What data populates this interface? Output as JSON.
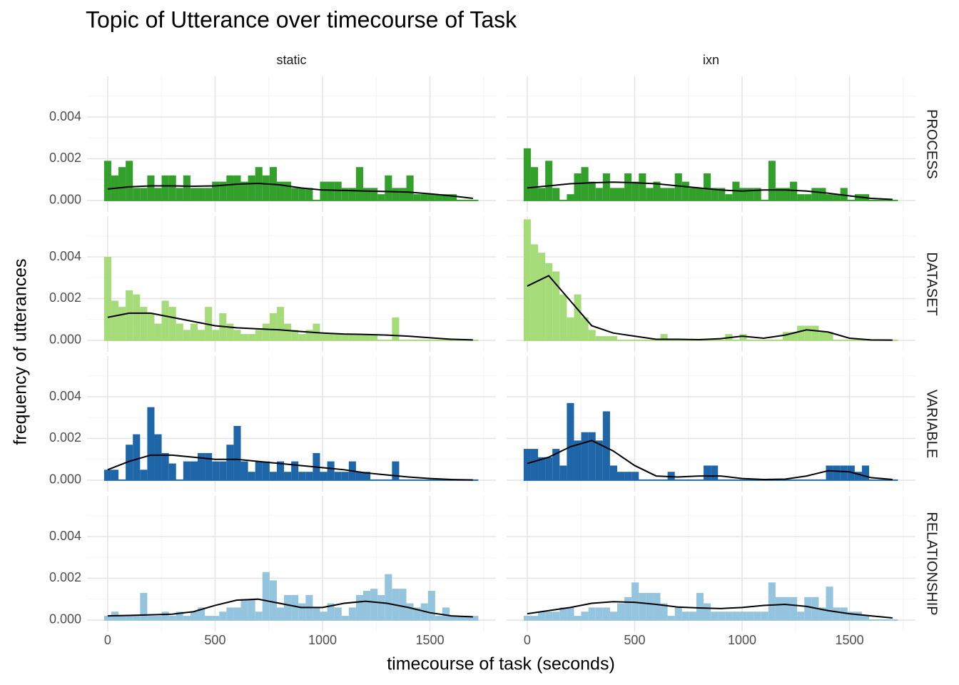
{
  "chart_data": {
    "type": "histogram",
    "title": "Topic of Utterance over timecourse of Task",
    "x_label": "timecourse of task (seconds)",
    "y_label": "frequency of utterances",
    "columns": [
      "static",
      "ixn"
    ],
    "rows": [
      {
        "name": "PROCESS",
        "color": "#33a02c"
      },
      {
        "name": "DATASET",
        "color": "#a6db7a"
      },
      {
        "name": "VARIABLE",
        "color": "#1f66a8"
      },
      {
        "name": "RELATIONSHIP",
        "color": "#94c4de"
      }
    ],
    "xlim": [
      -96,
      1807
    ],
    "ylim": [
      -0.00055,
      0.00595
    ],
    "xticks": [
      0,
      500,
      1000,
      1500
    ],
    "yticks": [
      {
        "value": 0,
        "label": "0.000"
      },
      {
        "value": 0.002,
        "label": "0.002"
      },
      {
        "value": 0.004,
        "label": "0.004"
      }
    ],
    "grid": true,
    "bins": [
      -16.75,
      16.75,
      50.25,
      83.75,
      117.25,
      150.75,
      184.25,
      217.75,
      251.25,
      284.75,
      318.25,
      351.75,
      385.25,
      418.75,
      452.25,
      485.75,
      519.25,
      552.75,
      586.25,
      619.75,
      653.25,
      686.75,
      720.25,
      753.75,
      787.25,
      820.75,
      854.25,
      887.75,
      921.25,
      954.75,
      988.25,
      1021.75,
      1055.25,
      1088.75,
      1122.25,
      1155.75,
      1189.25,
      1222.75,
      1256.25,
      1289.75,
      1323.25,
      1356.75,
      1390.25,
      1423.75,
      1457.25,
      1490.75,
      1524.25,
      1557.75,
      1591.25,
      1624.75,
      1658.25,
      1691.75,
      1725.25
    ],
    "density_x": [
      0,
      100,
      200,
      300,
      400,
      500,
      600,
      700,
      800,
      900,
      1000,
      1100,
      1200,
      1300,
      1400,
      1500,
      1600,
      1700
    ],
    "panels": [
      [
        {
          "values": [
            0.0019,
            0.0012,
            0.0016,
            0.0019,
            0.0006,
            0.0006,
            0.0012,
            0.0006,
            0.0012,
            0.0012,
            0.0006,
            0.0012,
            0.0006,
            0.0006,
            0.0006,
            0.0009,
            0.0009,
            0.0012,
            0.0012,
            0.0009,
            0.0012,
            0.0016,
            0.0012,
            0.0016,
            0.0009,
            0.0009,
            0.0006,
            0.0006,
            0.0006,
            0,
            0.0009,
            0.0009,
            0.0009,
            0.0006,
            0.0006,
            0.0016,
            0.0006,
            0.0006,
            0.0003,
            0.0012,
            0.0006,
            0.0006,
            0.0012,
            0.0003,
            0.0003,
            0.0003,
            0.0003,
            0.0003,
            0.0003,
            0,
            0,
            0
          ],
          "density": [
            0.00055,
            0.00065,
            0.0007,
            0.0007,
            0.00068,
            0.0007,
            0.00078,
            0.00082,
            0.00075,
            0.0006,
            0.0005,
            0.00048,
            0.00045,
            0.00043,
            0.0004,
            0.00032,
            0.00022,
            0.0001
          ]
        },
        {
          "values": [
            0.0025,
            0.0016,
            0.0006,
            0.0019,
            0.0006,
            0,
            0.0003,
            0.0013,
            0.0016,
            0.0009,
            0.0006,
            0.0013,
            0.0006,
            0.0006,
            0.0013,
            0.0009,
            0.0013,
            0.0006,
            0.0009,
            0.0006,
            0.0006,
            0.0013,
            0.0009,
            0.0006,
            0.0006,
            0.0013,
            0.0006,
            0.0006,
            0.0003,
            0.0009,
            0.0006,
            0.0006,
            0.0006,
            0,
            0.0019,
            0.0006,
            0.0006,
            0.0009,
            0.0003,
            0.0003,
            0.0006,
            0.0006,
            0.0003,
            0.0003,
            0.0006,
            0,
            0.0003,
            0.0003,
            0,
            0,
            0,
            0
          ],
          "density": [
            0.0006,
            0.0007,
            0.0008,
            0.00085,
            0.00088,
            0.00085,
            0.0008,
            0.0007,
            0.0006,
            0.0005,
            0.00045,
            0.0005,
            0.0005,
            0.00045,
            0.00035,
            0.00022,
            0.0001,
            5e-05
          ]
        }
      ],
      [
        {
          "values": [
            0.004,
            0.0019,
            0.0016,
            0.0024,
            0.0022,
            0.0016,
            0.0013,
            0.0008,
            0.0019,
            0.0016,
            0.0008,
            0.0005,
            0.0008,
            0.0005,
            0.0016,
            0.0005,
            0.0013,
            0.0008,
            0.0005,
            0.0003,
            0.0003,
            0.0005,
            0.0008,
            0.0013,
            0.0016,
            0.0008,
            0.0005,
            0.0003,
            0.0005,
            0.0008,
            0.0003,
            0.0003,
            0.0003,
            0.0003,
            0.0003,
            0.0003,
            0.0003,
            0.0003,
            0,
            0,
            0.0011,
            0,
            0,
            0,
            0,
            0,
            0,
            0,
            0,
            0,
            0,
            0
          ],
          "density": [
            0.0011,
            0.0013,
            0.0013,
            0.0011,
            0.0009,
            0.0007,
            0.0006,
            0.00055,
            0.0005,
            0.00042,
            0.00035,
            0.0003,
            0.00028,
            0.00025,
            0.0002,
            0.00012,
            5e-05,
            2e-05
          ]
        },
        {
          "values": [
            0.0058,
            0.0046,
            0.0042,
            0.0037,
            0.0033,
            0.0022,
            0.0011,
            0.0022,
            0.0011,
            0.0005,
            0.0002,
            0.0002,
            0.0002,
            0,
            0,
            0,
            0,
            0,
            0,
            0.0003,
            0,
            0,
            0,
            0,
            0,
            0,
            0,
            0,
            0.0003,
            0,
            0.0003,
            0,
            0,
            0,
            0,
            0,
            0.0004,
            0.0004,
            0.0007,
            0.0007,
            0.0007,
            0.0004,
            0.0004,
            0,
            0,
            0,
            0,
            0,
            0,
            0,
            0,
            0
          ],
          "density": [
            0.0026,
            0.0031,
            0.0019,
            0.0007,
            0.00035,
            0.0002,
            5e-05,
            5e-05,
            3e-05,
            8e-05,
            0.0002,
            0.0001,
            0.00025,
            0.0005,
            0.0004,
            0.0001,
            2e-05,
            1e-05
          ]
        }
      ],
      [
        {
          "values": [
            0.0005,
            0.0005,
            0,
            0.0017,
            0.0022,
            0.0005,
            0.0035,
            0.0022,
            0.0013,
            0.0008,
            0,
            0.0009,
            0.0009,
            0.0013,
            0.0013,
            0.0009,
            0.0009,
            0.0017,
            0.0026,
            0.0009,
            0.0004,
            0.0009,
            0.0009,
            0.0004,
            0.0009,
            0.0004,
            0.0009,
            0.0004,
            0.0004,
            0.0013,
            0.0004,
            0.0009,
            0.0004,
            0.0004,
            0.0009,
            0.0004,
            0.0004,
            0,
            0,
            0,
            0.0009,
            0,
            0,
            0,
            0,
            0,
            0,
            0,
            0,
            0,
            0,
            0
          ],
          "density": [
            0.0005,
            0.0009,
            0.0012,
            0.0012,
            0.0011,
            0.001,
            0.001,
            0.0009,
            0.0008,
            0.0007,
            0.0006,
            0.0005,
            0.00035,
            0.00025,
            0.00015,
            8e-05,
            3e-05,
            1e-05
          ]
        },
        {
          "values": [
            0.0015,
            0.0015,
            0.0011,
            0.0011,
            0.0015,
            0.0007,
            0.0037,
            0.0019,
            0.0023,
            0.0023,
            0.0019,
            0.0033,
            0.0007,
            0.0004,
            0.0004,
            0.0004,
            0,
            0,
            0,
            0,
            0.0004,
            0,
            0,
            0,
            0,
            0.0007,
            0.0007,
            0,
            0,
            0,
            0,
            0,
            0,
            0,
            0,
            0,
            0,
            0,
            0,
            0,
            0,
            0,
            0.0007,
            0.0007,
            0.0007,
            0.0007,
            0.0004,
            0.0007,
            0,
            0,
            0,
            0
          ],
          "density": [
            0.0008,
            0.0011,
            0.0016,
            0.0019,
            0.0014,
            0.0007,
            0.0002,
            0.00015,
            0.0002,
            0.0002,
            8e-05,
            3e-05,
            5e-05,
            0.0002,
            0.00045,
            0.0004,
            0.00012,
            3e-05
          ]
        }
      ],
      [
        {
          "values": [
            0.0002,
            0.0004,
            0.0002,
            0.0002,
            0.0002,
            0.0013,
            0.0002,
            0.0002,
            0.0004,
            0.0002,
            0.0004,
            0.0002,
            0.0004,
            0.0006,
            0.0002,
            0.0002,
            0.0004,
            0.0006,
            0.0006,
            0.001,
            0.001,
            0.0004,
            0.0023,
            0.0019,
            0.0006,
            0.0012,
            0.0012,
            0.0008,
            0.0012,
            0.0006,
            0.0004,
            0.0008,
            0.0006,
            0.0002,
            0.0006,
            0.0012,
            0.0014,
            0.0015,
            0.0012,
            0.0022,
            0.0015,
            0.0015,
            0.0008,
            0.0006,
            0.0008,
            0.0014,
            0.0002,
            0.0006,
            0.0002,
            0.0002,
            0.0002,
            0.0002
          ],
          "density": [
            0.0002,
            0.00022,
            0.00025,
            0.00028,
            0.0004,
            0.0007,
            0.00095,
            0.001,
            0.0008,
            0.0006,
            0.0006,
            0.0008,
            0.0009,
            0.0008,
            0.0006,
            0.00035,
            0.0002,
            0.00015
          ]
        },
        {
          "values": [
            0.0002,
            0.0002,
            0.0004,
            0.0004,
            0.0004,
            0.0006,
            0.0006,
            0.0002,
            0.0004,
            0.0006,
            0.0006,
            0.0006,
            0.0004,
            0.0008,
            0.0011,
            0.0018,
            0.0013,
            0.0013,
            0.0013,
            0.0008,
            0.0002,
            0.0006,
            0.0004,
            0.0004,
            0.0013,
            0.0008,
            0.0004,
            0.0004,
            0.0004,
            0.0004,
            0.0004,
            0.0004,
            0.0004,
            0.0004,
            0.0018,
            0.0011,
            0.0011,
            0.0011,
            0.0004,
            0.0011,
            0.0011,
            0.0006,
            0.0016,
            0.0006,
            0.0006,
            0.0004,
            0.0004,
            0.0002,
            0,
            0,
            0,
            0
          ],
          "density": [
            0.0003,
            0.00045,
            0.0006,
            0.0008,
            0.00088,
            0.00085,
            0.00075,
            0.00062,
            0.00058,
            0.00055,
            0.0006,
            0.0007,
            0.00075,
            0.00065,
            0.00045,
            0.0003,
            0.0002,
            0.0001
          ]
        }
      ]
    ]
  }
}
